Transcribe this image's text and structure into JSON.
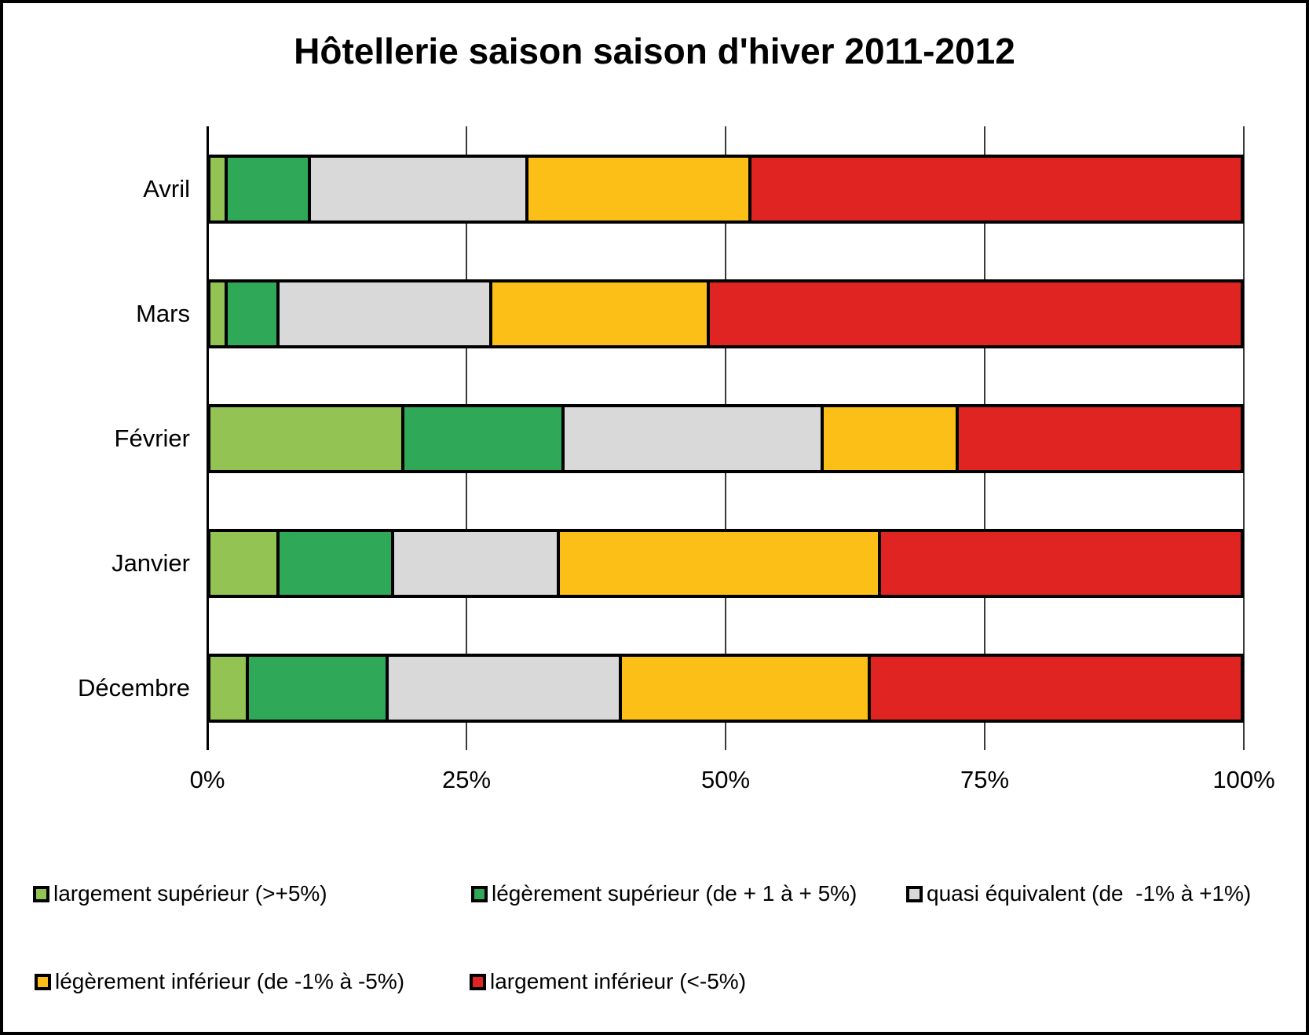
{
  "title": "Hôtellerie saison saison d'hiver 2011-2012",
  "chart_data": {
    "type": "bar",
    "orientation": "horizontal",
    "stacked": true,
    "stack_unit": "percent",
    "title": "Hôtellerie saison saison d'hiver 2011-2012",
    "categories": [
      "Avril",
      "Mars",
      "Février",
      "Janvier",
      "Décembre"
    ],
    "series": [
      {
        "name": "largement supérieur (>+5%)",
        "color": "#92C353",
        "values": [
          2,
          2,
          19,
          7,
          4
        ]
      },
      {
        "name": "légèrement supérieur (de + 1 à + 5%)",
        "color": "#2FA857",
        "values": [
          8,
          5,
          15.5,
          11,
          13.5
        ]
      },
      {
        "name": "quasi équivalent (de  -1% à +1%)",
        "color": "#D9D9D9",
        "values": [
          21,
          20.5,
          25,
          16,
          22.5
        ]
      },
      {
        "name": "légèrement inférieur (de -1% à -5%)",
        "color": "#FBBF17",
        "values": [
          21.5,
          21,
          13,
          31,
          24
        ]
      },
      {
        "name": "largement inférieur (<-5%)",
        "color": "#E02422",
        "values": [
          47.5,
          51.5,
          27.5,
          35,
          36
        ]
      }
    ],
    "x_ticks": [
      0,
      25,
      50,
      75,
      100
    ],
    "x_tick_labels": [
      "0%",
      "25%",
      "50%",
      "75%",
      "100%"
    ],
    "xlim": [
      0,
      100
    ],
    "grid": true,
    "legend_position": "bottom"
  }
}
